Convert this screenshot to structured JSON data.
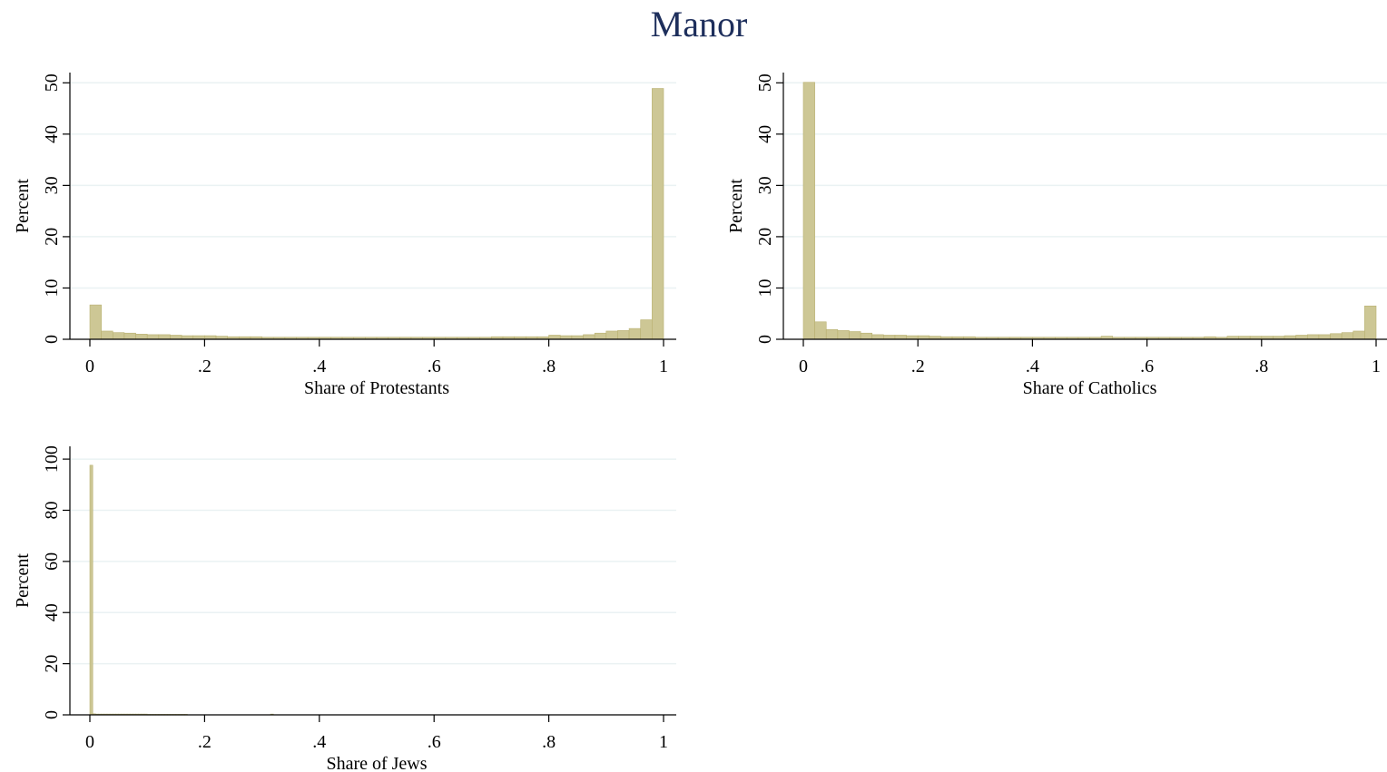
{
  "figure": {
    "title": "Manor",
    "title_color": "#1e2f5c",
    "bar_fill": "#cdc795",
    "bar_stroke": "#b8b070",
    "grid_color": "#eaf2f3"
  },
  "chart_data": [
    {
      "type": "bar",
      "panel": "top-left",
      "xlabel": "Share of Protestants",
      "ylabel": "Percent",
      "xlim": [
        0,
        1
      ],
      "ylim": [
        0,
        52
      ],
      "yticks": [
        0,
        10,
        20,
        30,
        40,
        50
      ],
      "ytick_labels": [
        "0",
        "10",
        "20",
        "30",
        "40",
        "50"
      ],
      "xticks": [
        0,
        0.2,
        0.4,
        0.6,
        0.8,
        1
      ],
      "xtick_labels": [
        "0",
        ".2",
        ".4",
        ".6",
        ".8",
        "1"
      ],
      "grid": true,
      "bin_width": 0.02,
      "bin_start": 0,
      "values": [
        6.7,
        1.6,
        1.3,
        1.2,
        1.0,
        0.9,
        0.9,
        0.8,
        0.7,
        0.7,
        0.7,
        0.6,
        0.5,
        0.5,
        0.5,
        0.4,
        0.4,
        0.4,
        0.4,
        0.4,
        0.4,
        0.4,
        0.4,
        0.4,
        0.4,
        0.4,
        0.4,
        0.4,
        0.4,
        0.4,
        0.4,
        0.4,
        0.4,
        0.4,
        0.4,
        0.5,
        0.5,
        0.5,
        0.5,
        0.5,
        0.8,
        0.7,
        0.7,
        0.9,
        1.2,
        1.6,
        1.7,
        2.1,
        3.8,
        48.9
      ]
    },
    {
      "type": "bar",
      "panel": "top-right",
      "xlabel": "Share of Catholics",
      "ylabel": "Percent",
      "xlim": [
        0,
        1
      ],
      "ylim": [
        0,
        52
      ],
      "yticks": [
        0,
        10,
        20,
        30,
        40,
        50
      ],
      "ytick_labels": [
        "0",
        "10",
        "20",
        "30",
        "40",
        "50"
      ],
      "xticks": [
        0,
        0.2,
        0.4,
        0.6,
        0.8,
        1
      ],
      "xtick_labels": [
        "0",
        ".2",
        ".4",
        ".6",
        ".8",
        "1"
      ],
      "grid": true,
      "bin_width": 0.02,
      "bin_start": 0,
      "values": [
        50.1,
        3.4,
        1.9,
        1.7,
        1.5,
        1.2,
        0.9,
        0.8,
        0.8,
        0.7,
        0.7,
        0.6,
        0.5,
        0.5,
        0.5,
        0.4,
        0.4,
        0.4,
        0.4,
        0.4,
        0.4,
        0.4,
        0.4,
        0.4,
        0.4,
        0.4,
        0.6,
        0.4,
        0.4,
        0.4,
        0.4,
        0.4,
        0.4,
        0.4,
        0.4,
        0.5,
        0.4,
        0.6,
        0.6,
        0.6,
        0.6,
        0.6,
        0.7,
        0.8,
        0.9,
        0.9,
        1.1,
        1.3,
        1.6,
        6.5
      ]
    },
    {
      "type": "bar",
      "panel": "bottom-left",
      "xlabel": "Share of Jews",
      "ylabel": "Percent",
      "xlim": [
        0,
        1
      ],
      "ylim": [
        0,
        105
      ],
      "yticks": [
        0,
        20,
        40,
        60,
        80,
        100
      ],
      "ytick_labels": [
        "0",
        "20",
        "40",
        "60",
        "80",
        "100"
      ],
      "xticks": [
        0,
        0.2,
        0.4,
        0.6,
        0.8,
        1
      ],
      "xtick_labels": [
        "0",
        ".2",
        ".4",
        ".6",
        ".8",
        "1"
      ],
      "grid": true,
      "bin_width": 0.005,
      "bin_start": 0,
      "values": [
        97.6,
        0.4,
        0.3,
        0.3,
        0.3,
        0.3,
        0.3,
        0.3,
        0.3,
        0.3,
        0.3,
        0.3,
        0.3,
        0.3,
        0.3,
        0.3,
        0.3,
        0.3,
        0.3,
        0.3,
        0.2,
        0.2,
        0.2,
        0.2,
        0.2,
        0.2,
        0.2,
        0.2,
        0.2,
        0.2,
        0.2,
        0.2,
        0.2,
        0.2,
        0,
        0,
        0,
        0,
        0,
        0,
        0,
        0,
        0,
        0,
        0,
        0,
        0,
        0,
        0,
        0,
        0,
        0,
        0,
        0,
        0,
        0,
        0,
        0,
        0,
        0,
        0,
        0,
        0,
        0.3
      ]
    }
  ]
}
